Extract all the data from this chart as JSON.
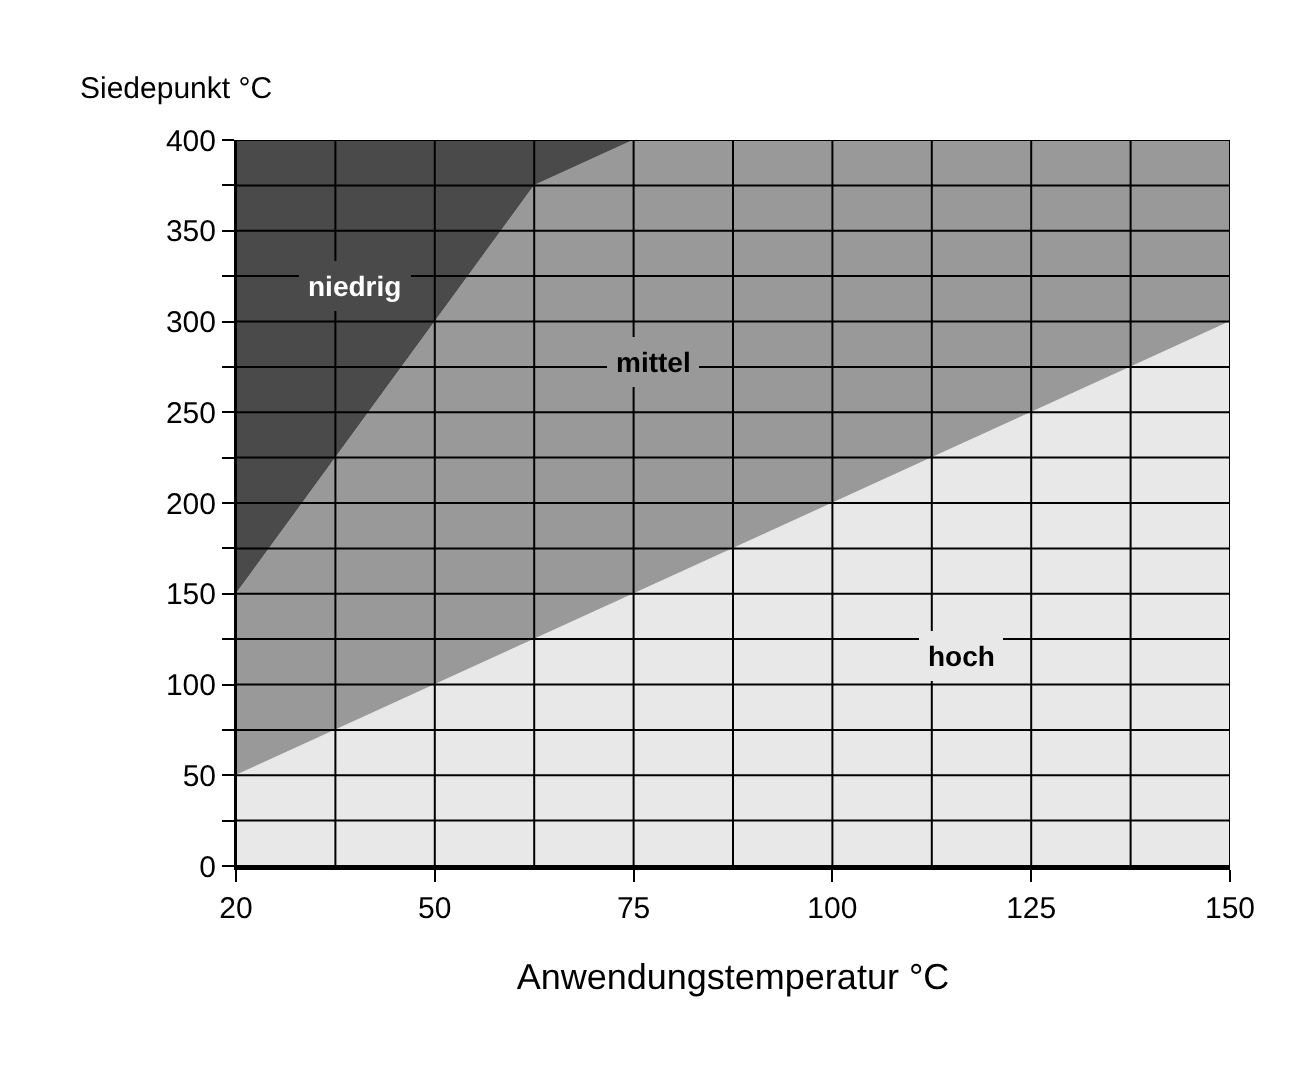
{
  "chart_data": {
    "type": "area",
    "xlabel": "Anwendungstemperatur °C",
    "ylabel": "Siedepunkt °C",
    "categories": [
      "20",
      null,
      "50",
      null,
      "75",
      null,
      "100",
      null,
      "125",
      null,
      "150"
    ],
    "series": [
      {
        "name": "hoch",
        "color": "#e8e8e8",
        "values": [
          50,
          75,
          100,
          125,
          150,
          175,
          200,
          225,
          250,
          275,
          300
        ]
      },
      {
        "name": "mittel",
        "color": "#999999",
        "values": [
          100,
          150,
          200,
          250,
          250,
          225,
          200,
          175,
          150,
          125,
          100
        ]
      },
      {
        "name": "niedrig",
        "color": "#4a4a4a",
        "values": [
          250,
          175,
          100,
          25,
          0,
          0,
          0,
          0,
          0,
          0,
          0
        ]
      }
    ],
    "stacked": true,
    "ylim": [
      0,
      400
    ],
    "yticks": [
      0,
      {
        "value": 25,
        "label": null
      },
      50,
      {
        "value": 75,
        "label": null
      },
      100,
      {
        "value": 125,
        "label": null
      },
      150,
      {
        "value": 175,
        "label": null
      },
      200,
      {
        "value": 225,
        "label": null
      },
      250,
      {
        "value": 275,
        "label": null
      },
      300,
      {
        "value": 325,
        "label": null
      },
      350,
      {
        "value": 375,
        "label": null
      },
      400
    ],
    "grid": true,
    "legend": false
  }
}
